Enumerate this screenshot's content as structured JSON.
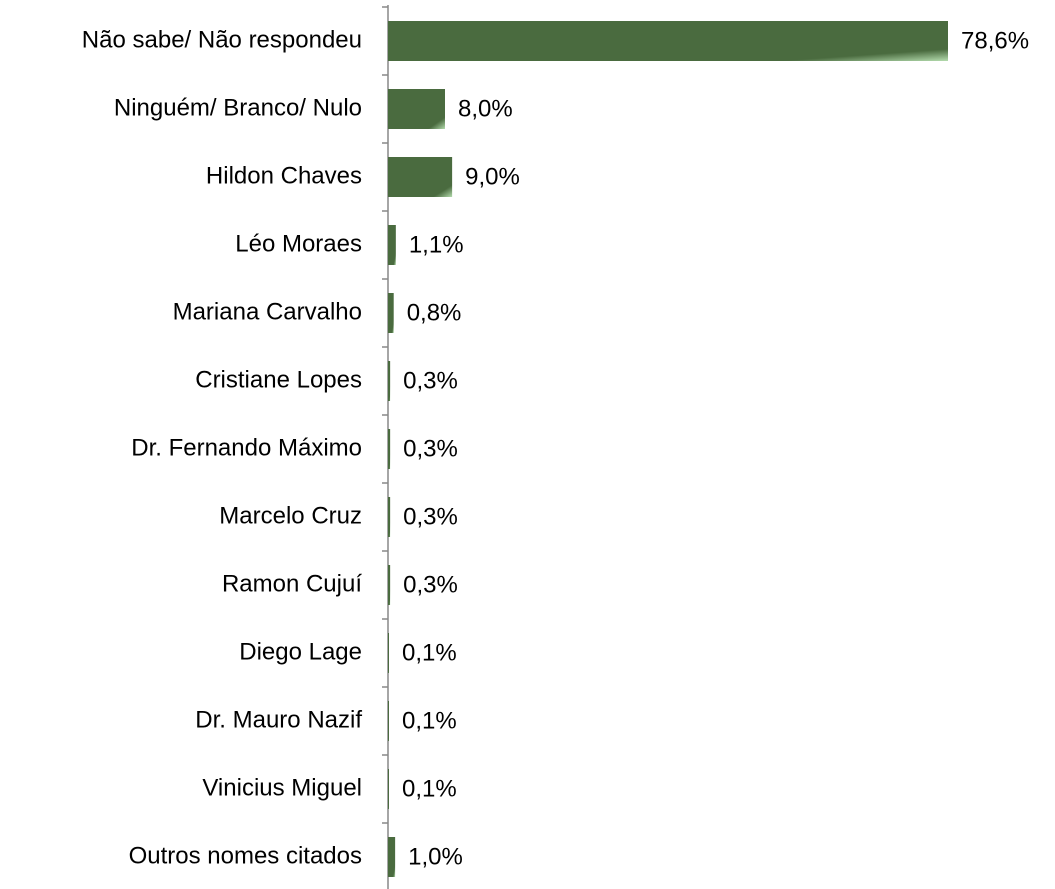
{
  "chart_data": {
    "type": "bar",
    "orientation": "horizontal",
    "categories": [
      "Não sabe/ Não respondeu",
      "Ninguém/ Branco/ Nulo",
      "Hildon Chaves",
      "Léo Moraes",
      "Mariana Carvalho",
      "Cristiane Lopes",
      "Dr. Fernando Máximo",
      "Marcelo Cruz",
      "Ramon Cujuí",
      "Diego Lage",
      "Dr. Mauro Nazif",
      "Vinicius Miguel",
      "Outros nomes citados"
    ],
    "values": [
      78.6,
      8.0,
      9.0,
      1.1,
      0.8,
      0.3,
      0.3,
      0.3,
      0.3,
      0.1,
      0.1,
      0.1,
      1.0
    ],
    "value_labels": [
      "78,6%",
      "8,0%",
      "9,0%",
      "1,1%",
      "0,8%",
      "0,3%",
      "0,3%",
      "0,3%",
      "0,3%",
      "0,1%",
      "0,1%",
      "0,1%",
      "1,0%"
    ],
    "color": "#4a6b3f"
  }
}
